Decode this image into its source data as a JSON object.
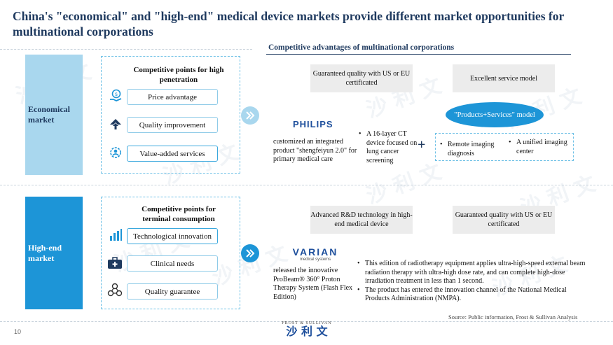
{
  "title": "China's \"economical\" and \"high-end\" medical device markets provide different market opportunities for multinational corporations",
  "advantages_heading": "Competitive advantages of multinational corporations",
  "economical": {
    "market_label": "Economical market",
    "panel_title": "Competitive points for high penetration",
    "points": [
      {
        "label": "Price advantage",
        "icon": "money-hand-icon"
      },
      {
        "label": "Quality improvement",
        "icon": "upload-arrow-icon"
      },
      {
        "label": "Value-added  services",
        "icon": "gear-person-icon"
      }
    ],
    "advantage_boxes": [
      "Guaranteed  quality  with  US or EU certificated",
      "Excellent  service model"
    ],
    "company_logo": "PHILIPS",
    "company_text": "customized  an integrated product \"shengfeiyun 2.0\" for primary medical care",
    "product_bullets": [
      "A 16-layer CT device focused on lung cancer screening"
    ],
    "plus": "+",
    "model_oval": "\"Products+Services\" model",
    "service_bullets": [
      "Remote imaging diagnosis",
      "A unified  imaging center"
    ]
  },
  "highend": {
    "market_label": "High-end market",
    "panel_title": "Competitive points for terminal consumption",
    "points": [
      {
        "label": "Technological innovation",
        "icon": "bar-chart-icon"
      },
      {
        "label": "Clinical needs",
        "icon": "medical-kit-icon"
      },
      {
        "label": "Quality guarantee",
        "icon": "network-circles-icon"
      }
    ],
    "advantage_boxes": [
      "Advanced R&D technology  in high-end  medical  device",
      "Guaranteed  quality  with  US or EU certificated"
    ],
    "company_logo": "VARIAN",
    "company_logo_sub": "medical systems",
    "company_text": "released the innovative ProBeam® 360° Proton Therapy System (Flash Flex Edition)",
    "bullets": [
      "This edition of radiotherapy equipment applies ultra-high-speed external beam radiation therapy with ultra-high dose rate, and can complete high-dose irradiation treatment in less than 1 second.",
      "The product has entered the innovation channel of the National Medical Products Administration  (NMPA)."
    ]
  },
  "source": "Source:   Public information,  Frost & Sullivan Analysis",
  "page_number": "10",
  "footer_logo_top": "FROST  &  SULLIVAN",
  "footer_logo_main": "沙 利 文",
  "watermark_text": "沙 利 文",
  "colors": {
    "title": "#1f3a5f",
    "accent": "#1d95d7",
    "light_accent": "#a9d7ee"
  }
}
